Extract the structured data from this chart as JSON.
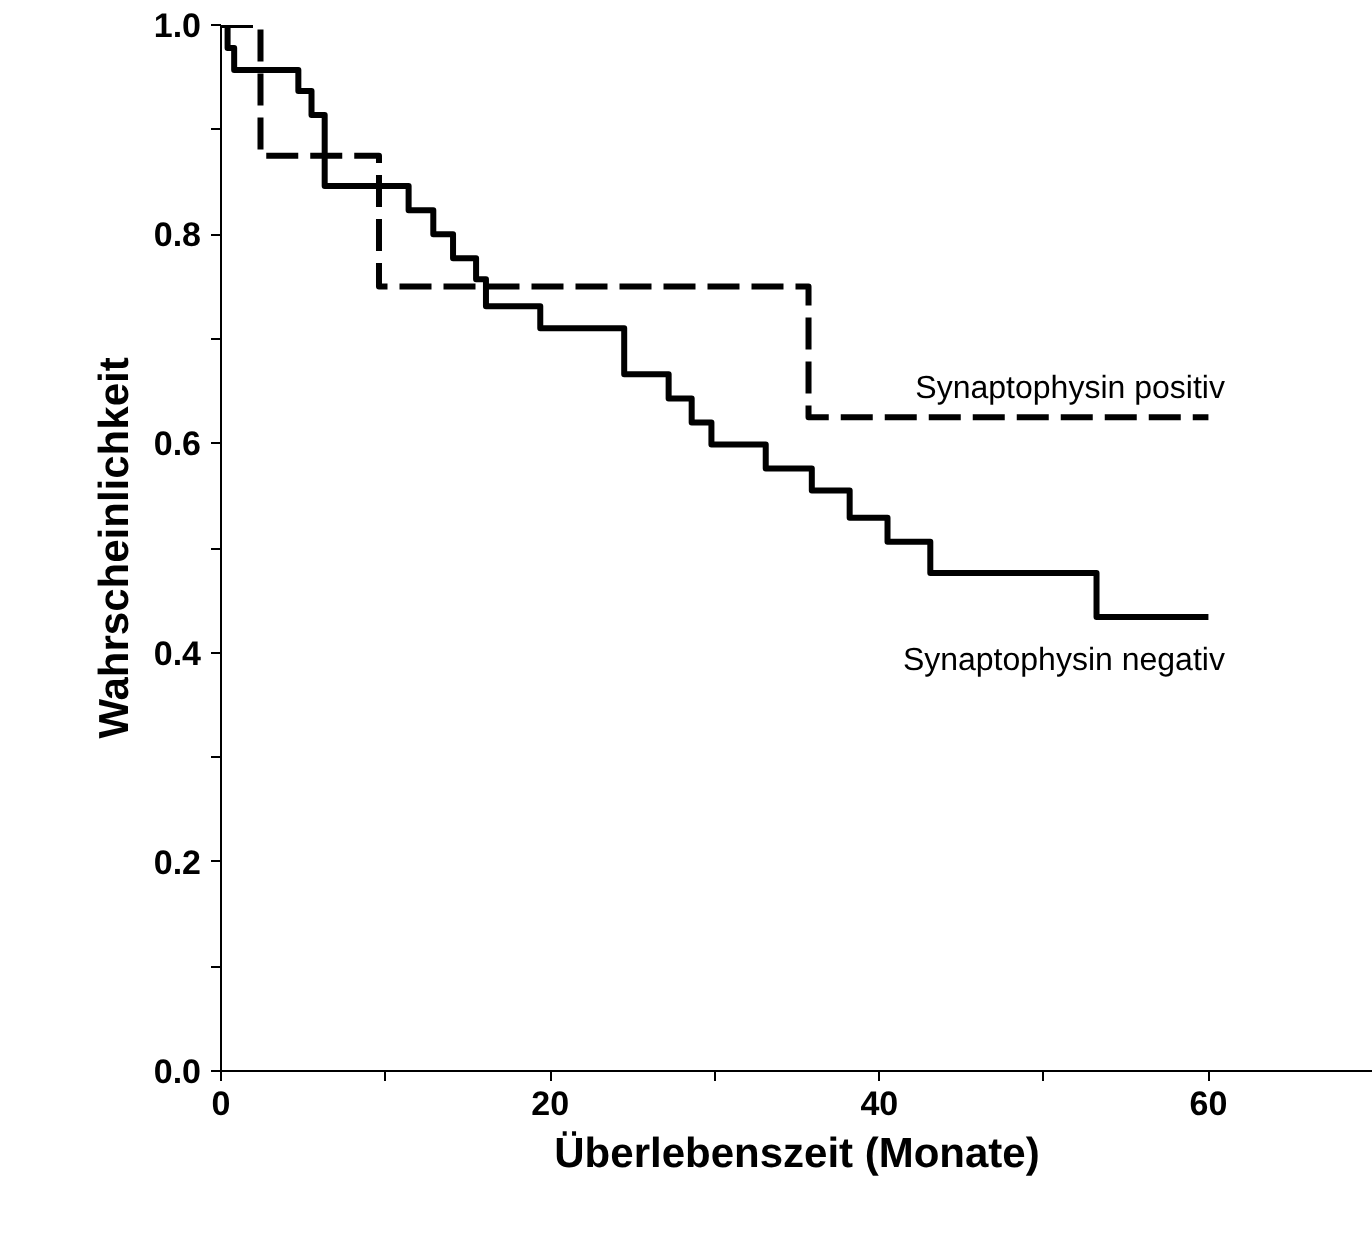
{
  "chart_data": {
    "type": "step",
    "xlabel": "Überlebenszeit (Monate)",
    "ylabel": "Wahrscheinlichkeit",
    "xlim": [
      0,
      70
    ],
    "ylim": [
      0,
      1.0
    ],
    "xticks": [
      0,
      {
        "value": 10,
        "label": null
      },
      20,
      {
        "value": 30,
        "label": null
      },
      40,
      {
        "value": 50,
        "label": null
      },
      60
    ],
    "yticks": [
      {
        "value": 0,
        "label": "0.0"
      },
      {
        "value": 0.1,
        "label": null
      },
      0.2,
      {
        "value": 0.3,
        "label": null
      },
      0.4,
      {
        "value": 0.5,
        "label": null
      },
      0.6,
      {
        "value": 0.7,
        "label": null
      },
      0.8,
      {
        "value": 0.9,
        "label": null
      },
      {
        "value": 1,
        "label": "1.0"
      }
    ],
    "marker": "none",
    "series": [
      {
        "name": "Synaptophysin positiv",
        "color": "#000000",
        "line_style": "dashed",
        "x": [
          0,
          2.4,
          9.6,
          35.7,
          60
        ],
        "values": [
          1.0,
          0.875,
          0.75,
          0.625,
          0.625
        ]
      },
      {
        "name": "Synaptophysin negativ",
        "color": "#000000",
        "line_style": "solid",
        "x": [
          0,
          0.4,
          0.8,
          4.7,
          5.5,
          6.3,
          11.4,
          12.9,
          14.1,
          15.5,
          16.1,
          19.4,
          24.5,
          27.2,
          28.6,
          29.8,
          33.1,
          35.9,
          38.2,
          40.5,
          43.1,
          53.2,
          60
        ],
        "values": [
          1.0,
          0.978,
          0.957,
          0.937,
          0.914,
          0.846,
          0.823,
          0.8,
          0.777,
          0.757,
          0.731,
          0.71,
          0.666,
          0.643,
          0.62,
          0.599,
          0.576,
          0.555,
          0.529,
          0.506,
          0.476,
          0.434,
          0.434
        ]
      }
    ]
  }
}
